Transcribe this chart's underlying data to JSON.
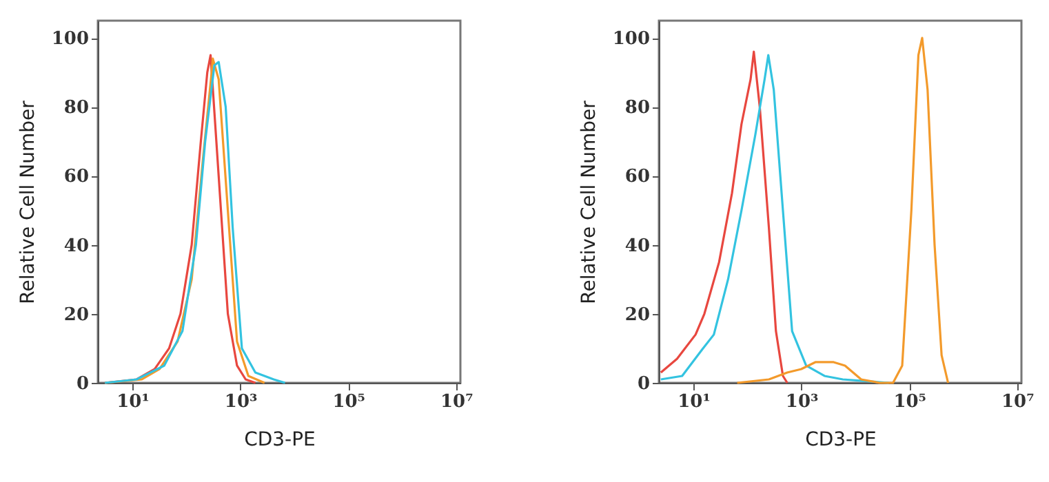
{
  "chart_data": [
    {
      "type": "line",
      "xlabel": "CD3-PE",
      "ylabel": "Relative Cell Number",
      "log": "x",
      "xlim": [
        2.3,
        12000000
      ],
      "ylim": [
        0,
        105
      ],
      "xticks": [
        {
          "value": 10,
          "label": "10¹"
        },
        {
          "value": 1000,
          "label": "10³"
        },
        {
          "value": 100000,
          "label": "10⁵"
        },
        {
          "value": 10000000,
          "label": "10⁷"
        }
      ],
      "yticks": [
        0,
        20,
        40,
        60,
        80,
        100
      ],
      "series": [
        {
          "color": "#e8473f",
          "x": [
            3.1,
            12,
            26,
            48,
            78,
            126,
            186,
            245,
            282,
            398,
            589,
            871,
            1259,
            1905
          ],
          "values": [
            0,
            1,
            4,
            10,
            20,
            40,
            70,
            90,
            95,
            60,
            20,
            5,
            1,
            0
          ]
        },
        {
          "color": "#f39a2b",
          "x": [
            3.1,
            15,
            32,
            69,
            126,
            204,
            295,
            310,
            398,
            589,
            871,
            1413,
            2818
          ],
          "values": [
            0,
            1,
            4,
            12,
            30,
            65,
            90,
            94,
            88,
            50,
            12,
            2,
            0
          ]
        },
        {
          "color": "#33c3e0",
          "x": [
            3.1,
            12,
            39,
            85,
            151,
            224,
            331,
            398,
            537,
            724,
            1072,
            1905,
            4169,
            6761
          ],
          "values": [
            0,
            1,
            5,
            15,
            40,
            70,
            92,
            93,
            80,
            45,
            10,
            3,
            1,
            0
          ]
        }
      ]
    },
    {
      "type": "line",
      "xlabel": "CD3-PE",
      "ylabel": "Relative Cell Number",
      "log": "x",
      "xlim": [
        2.3,
        12000000
      ],
      "ylim": [
        0,
        105
      ],
      "xticks": [
        {
          "value": 10,
          "label": "10¹"
        },
        {
          "value": 1000,
          "label": "10³"
        },
        {
          "value": 100000,
          "label": "10⁵"
        },
        {
          "value": 10000000,
          "label": "10⁷"
        }
      ],
      "yticks": [
        0,
        20,
        40,
        60,
        80,
        100
      ],
      "series": [
        {
          "color": "#e8473f",
          "x": [
            2.5,
            5,
            11,
            16,
            30,
            52,
            78,
            115,
            132,
            170,
            251,
            339,
            457,
            550
          ],
          "values": [
            3,
            7,
            14,
            20,
            35,
            55,
            75,
            88,
            96,
            80,
            45,
            15,
            2,
            0
          ]
        },
        {
          "color": "#33c3e0",
          "x": [
            2.5,
            6.2,
            13.5,
            24,
            44,
            78,
            141,
            209,
            245,
            309,
            457,
            676,
            1230,
            2692,
            5888,
            41690
          ],
          "values": [
            1,
            2,
            9,
            14,
            30,
            50,
            72,
            88,
            95,
            85,
            50,
            15,
            5,
            2,
            1,
            0
          ]
        },
        {
          "color": "#f39a2b",
          "x": [
            65,
            251,
            550,
            1000,
            1820,
            3981,
            6457,
            12880,
            28180,
            50120,
            74130,
            109600,
            147900,
            173800,
            218800,
            295100,
            398100,
            524800
          ],
          "values": [
            0,
            1,
            3,
            4,
            6,
            6,
            5,
            1,
            0,
            0,
            5,
            50,
            95,
            100,
            85,
            40,
            8,
            0
          ]
        }
      ]
    }
  ]
}
